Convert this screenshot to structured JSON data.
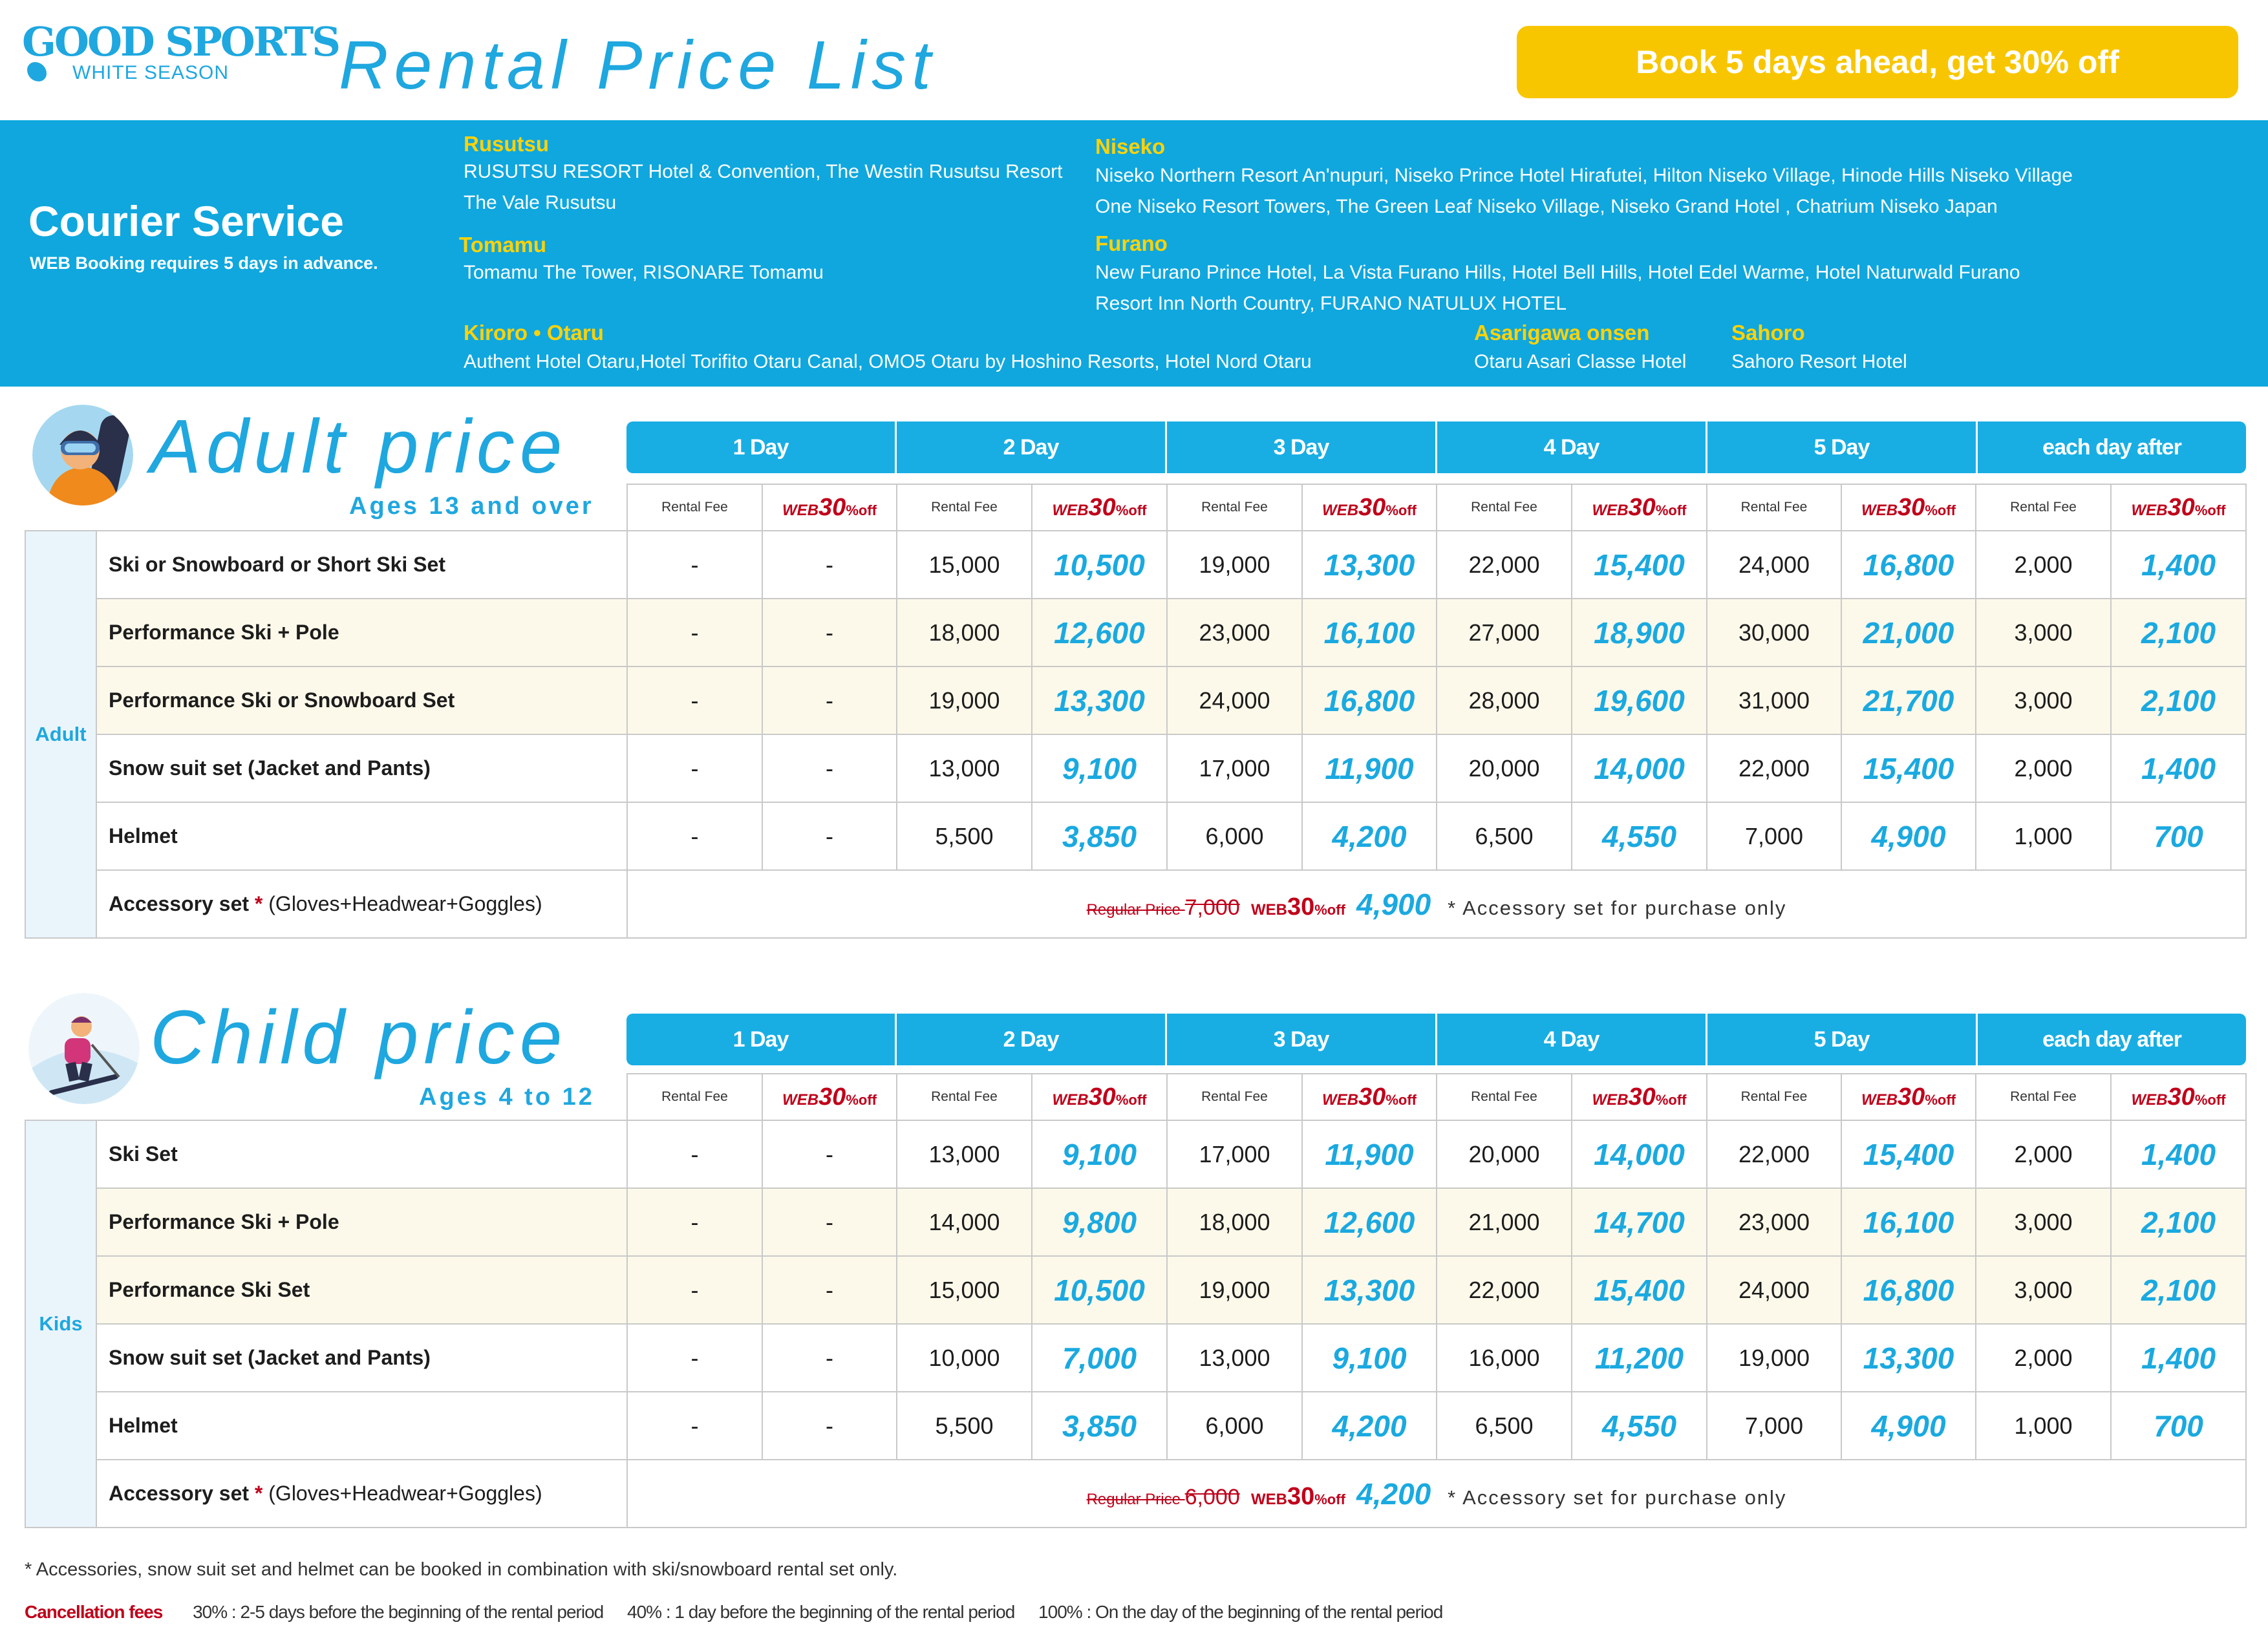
{
  "header": {
    "logo_main": "GOOD SPORTS",
    "logo_sub": "WHITE SEASON",
    "title": "Rental Price List",
    "promo": "Book 5 days ahead, get 30% off"
  },
  "courier": {
    "title": "Courier Service",
    "note": "WEB Booking requires 5 days in advance.",
    "areas": {
      "rusutsu": {
        "name": "Rusutsu",
        "line1": "RUSUTSU RESORT Hotel & Convention, The Westin Rusutsu Resort",
        "line2": "The Vale Rusutsu"
      },
      "tomamu": {
        "name": "Tomamu",
        "line1": "Tomamu The Tower, RISONARE Tomamu"
      },
      "kiroro": {
        "name": "Kiroro • Otaru",
        "line1": "Authent Hotel Otaru,Hotel Torifito Otaru Canal, OMO5 Otaru by Hoshino Resorts, Hotel Nord Otaru"
      },
      "niseko": {
        "name": "Niseko",
        "line1": "Niseko Northern Resort An'nupuri, Niseko Prince Hotel Hirafutei, Hilton Niseko Village, Hinode Hills Niseko Village",
        "line2": "One Niseko Resort Towers, The Green Leaf Niseko Village, Niseko Grand Hotel , Chatrium Niseko Japan"
      },
      "furano": {
        "name": "Furano",
        "line1": "New Furano Prince Hotel, La Vista Furano Hills, Hotel Bell Hills, Hotel Edel Warme, Hotel Naturwald Furano",
        "line2": "Resort Inn North Country, FURANO NATULUX HOTEL"
      },
      "asarigawa": {
        "name": "Asarigawa onsen",
        "line1": "Otaru Asari Classe Hotel"
      },
      "sahoro": {
        "name": "Sahoro",
        "line1": "Sahoro Resort Hotel"
      }
    }
  },
  "labels": {
    "days": [
      "1 Day",
      "2 Day",
      "3 Day",
      "4 Day",
      "5 Day",
      "each day after"
    ],
    "rental_fee": "Rental Fee",
    "web_prefix": "WEB",
    "web_pct": "30",
    "web_suffix": "%off",
    "regular_price": "Regular Price",
    "accessory_note": "* Accessory set for purchase only"
  },
  "adult": {
    "title": "Adult price",
    "subtitle": "Ages 13 and over",
    "group": "Adult",
    "rows": [
      {
        "item": "Ski or Snowboard or Short Ski Set",
        "values": [
          "-",
          "-",
          "15,000",
          "10,500",
          "19,000",
          "13,300",
          "22,000",
          "15,400",
          "24,000",
          "16,800",
          "2,000",
          "1,400"
        ]
      },
      {
        "item": "Performance Ski + Pole",
        "values": [
          "-",
          "-",
          "18,000",
          "12,600",
          "23,000",
          "16,100",
          "27,000",
          "18,900",
          "30,000",
          "21,000",
          "3,000",
          "2,100"
        ]
      },
      {
        "item": "Performance Ski or Snowboard Set",
        "values": [
          "-",
          "-",
          "19,000",
          "13,300",
          "24,000",
          "16,800",
          "28,000",
          "19,600",
          "31,000",
          "21,700",
          "3,000",
          "2,100"
        ]
      },
      {
        "item": "Snow suit set (Jacket and Pants)",
        "values": [
          "-",
          "-",
          "13,000",
          "9,100",
          "17,000",
          "11,900",
          "20,000",
          "14,000",
          "22,000",
          "15,400",
          "2,000",
          "1,400"
        ]
      },
      {
        "item": "Helmet",
        "values": [
          "-",
          "-",
          "5,500",
          "3,850",
          "6,000",
          "4,200",
          "6,500",
          "4,550",
          "7,000",
          "4,900",
          "1,000",
          "700"
        ]
      }
    ],
    "accessory": {
      "label": "Accessory set",
      "star": "*",
      "detail": "(Gloves+Headwear+Goggles)",
      "regular": "7,000",
      "web_price": "4,900"
    }
  },
  "child": {
    "title": "Child price",
    "subtitle": "Ages 4 to 12",
    "group": "Kids",
    "rows": [
      {
        "item": "Ski Set",
        "values": [
          "-",
          "-",
          "13,000",
          "9,100",
          "17,000",
          "11,900",
          "20,000",
          "14,000",
          "22,000",
          "15,400",
          "2,000",
          "1,400"
        ]
      },
      {
        "item": "Performance Ski + Pole",
        "values": [
          "-",
          "-",
          "14,000",
          "9,800",
          "18,000",
          "12,600",
          "21,000",
          "14,700",
          "23,000",
          "16,100",
          "3,000",
          "2,100"
        ]
      },
      {
        "item": "Performance Ski Set",
        "values": [
          "-",
          "-",
          "15,000",
          "10,500",
          "19,000",
          "13,300",
          "22,000",
          "15,400",
          "24,000",
          "16,800",
          "3,000",
          "2,100"
        ]
      },
      {
        "item": "Snow suit set (Jacket and Pants)",
        "values": [
          "-",
          "-",
          "10,000",
          "7,000",
          "13,000",
          "9,100",
          "16,000",
          "11,200",
          "19,000",
          "13,300",
          "2,000",
          "1,400"
        ]
      },
      {
        "item": "Helmet",
        "values": [
          "-",
          "-",
          "5,500",
          "3,850",
          "6,000",
          "4,200",
          "6,500",
          "4,550",
          "7,000",
          "4,900",
          "1,000",
          "700"
        ]
      }
    ],
    "accessory": {
      "label": "Accessory set",
      "star": "*",
      "detail": "(Gloves+Headwear+Goggles)",
      "regular": "6,000",
      "web_price": "4,200"
    }
  },
  "footer": {
    "note": "* Accessories, snow suit set and helmet can be booked in combination with ski/snowboard rental set only.",
    "cancel_label": "Cancellation fees",
    "cancel_items": [
      "30% : 2-5 days before the beginning of the rental period",
      "40% : 1 day before the beginning of the rental period",
      "100% : On the day of the beginning of the rental period"
    ]
  }
}
